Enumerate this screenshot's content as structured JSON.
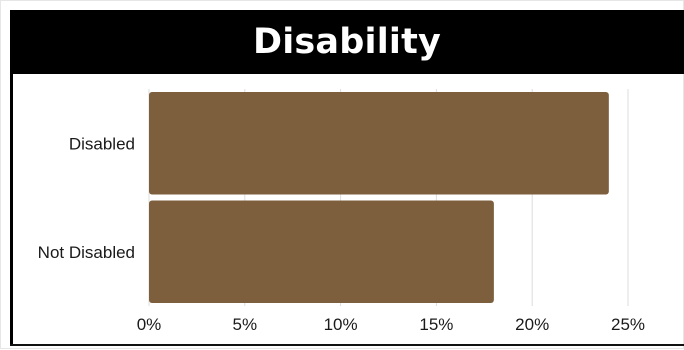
{
  "colors": {
    "bar": "#7d5f3e",
    "title_band": "#000000",
    "grid": "#dddddd"
  },
  "chart_data": {
    "type": "bar",
    "orientation": "horizontal",
    "title": "Disability",
    "categories": [
      "Disabled",
      "Not Disabled"
    ],
    "values": [
      24,
      18
    ],
    "xlim": [
      0,
      25
    ],
    "x_ticks": [
      0,
      5,
      10,
      15,
      20,
      25
    ],
    "x_tick_labels": [
      "0%",
      "5%",
      "10%",
      "15%",
      "20%",
      "25%"
    ],
    "grid": "vertical"
  }
}
